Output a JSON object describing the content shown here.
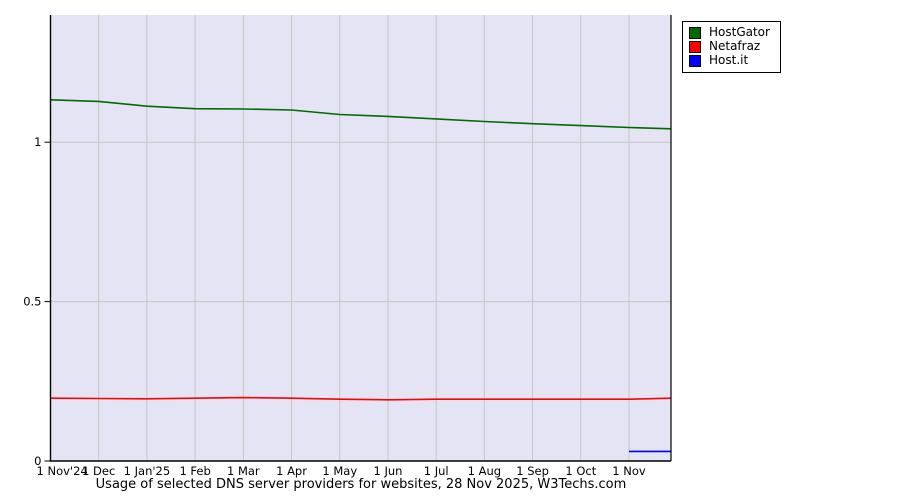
{
  "title": "Usage of selected DNS server providers for websites, 28 Nov 2025, W3Techs.com",
  "chart_data": {
    "type": "line",
    "title": "Usage of selected DNS server providers for websites, 28 Nov 2025, W3Techs.com",
    "background_color": "#e4e4f5",
    "grid_color": "#c6c6c6",
    "axis_color": "#000000",
    "grid": true,
    "legend_position": "top-right",
    "ylim": [
      0,
      1.4
    ],
    "y_ticks": [
      0,
      0.5,
      1
    ],
    "y_tick_labels": [
      "0",
      "0.5",
      "1"
    ],
    "x_tick_labels": [
      "1 Nov'24",
      "1 Dec",
      "1 Jan'25",
      "1 Feb",
      "1 Mar",
      "1 Apr",
      "1 May",
      "1 Jun",
      "1 Jul",
      "1 Aug",
      "1 Sep",
      "1 Oct",
      "1 Nov"
    ],
    "x_points": [
      "1 Nov'24",
      "1 Dec'24",
      "1 Jan'25",
      "1 Feb'25",
      "1 Mar'25",
      "1 Apr'25",
      "1 May'25",
      "1 Jun'25",
      "1 Jul'25",
      "1 Aug'25",
      "1 Sep'25",
      "1 Oct'25",
      "1 Nov'25",
      "28 Nov'25"
    ],
    "series": [
      {
        "name": "HostGator",
        "color": "#006a00",
        "values": [
          1.133,
          1.128,
          1.113,
          1.105,
          1.104,
          1.101,
          1.087,
          1.081,
          1.073,
          1.065,
          1.058,
          1.052,
          1.046,
          1.042
        ]
      },
      {
        "name": "Netafraz",
        "color": "#ff0000",
        "values": [
          0.197,
          0.196,
          0.195,
          0.197,
          0.199,
          0.197,
          0.194,
          0.192,
          0.194,
          0.194,
          0.194,
          0.194,
          0.194,
          0.197
        ]
      },
      {
        "name": "Host.it",
        "color": "#0000ff",
        "values": [
          null,
          null,
          null,
          null,
          null,
          null,
          null,
          null,
          null,
          null,
          null,
          null,
          0.03,
          0.03
        ]
      }
    ]
  }
}
